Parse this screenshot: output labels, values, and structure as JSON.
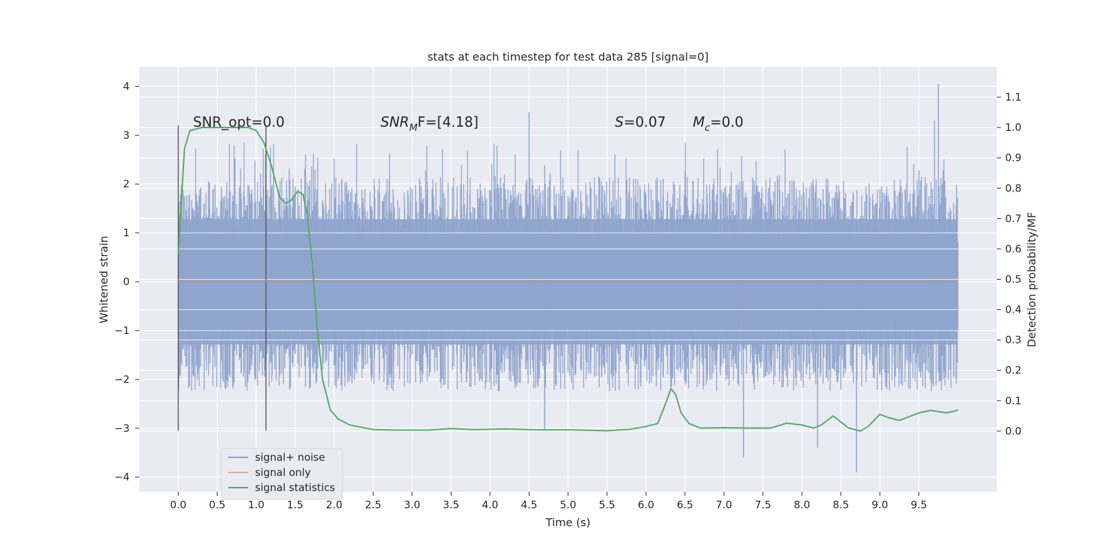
{
  "chart_data": {
    "type": "line",
    "title": "stats at each timestep for test data 285 [signal=0]",
    "xlabel": "Time (s)",
    "ylabel": "Whitened strain",
    "y2label": "Detection probability/MF",
    "xlim": [
      -0.5,
      10.5
    ],
    "ylim": [
      -4.3,
      4.4
    ],
    "y2lim": [
      -0.2,
      1.2
    ],
    "x_ticks": [
      "0.0",
      "0.5",
      "1.0",
      "1.5",
      "2.0",
      "2.5",
      "3.0",
      "3.5",
      "4.0",
      "4.5",
      "5.0",
      "5.5",
      "6.0",
      "6.5",
      "7.0",
      "7.5",
      "8.0",
      "8.5",
      "9.0",
      "9.5"
    ],
    "y_ticks": [
      "4",
      "3",
      "2",
      "1",
      "0",
      "−1",
      "−2",
      "−3",
      "−4"
    ],
    "y2_ticks": [
      "1.1",
      "1.0",
      "0.9",
      "0.8",
      "0.7",
      "0.6",
      "0.5",
      "0.4",
      "0.3",
      "0.2",
      "0.1",
      "0.0"
    ],
    "grid": true,
    "legend_placement": "lower-left",
    "annotations": {
      "snr_opt": "SNR_opt=0.0",
      "snr_mf_main": "SNR",
      "snr_mf_sub": "M",
      "snr_mf_rest": "F=[4.18]",
      "s_main": "S",
      "s_rest": "=0.07",
      "mc_main": "M",
      "mc_sub": "c",
      "mc_rest": "=0.0"
    },
    "vertical_markers": [
      0.0,
      1.125
    ],
    "series": [
      {
        "name": "signal+ noise",
        "axis": "left",
        "color": "#8fa4cc",
        "x_range": [
          0.0,
          10.0
        ],
        "band_typical": [
          -1.35,
          1.35
        ],
        "peak_range": [
          -3.9,
          4.05
        ],
        "notable_peaks": [
          {
            "x": 4.5,
            "y": 3.47
          },
          {
            "x": 9.75,
            "y": 4.05
          },
          {
            "x": 9.7,
            "y": 3.3
          },
          {
            "x": 8.7,
            "y": -3.9
          },
          {
            "x": 7.25,
            "y": -3.6
          },
          {
            "x": 8.2,
            "y": -3.4
          },
          {
            "x": 1.12,
            "y": 2.6
          },
          {
            "x": 4.7,
            "y": -3.05
          }
        ]
      },
      {
        "name": "signal only",
        "axis": "left",
        "color": "#dd8452",
        "points": [
          [
            0.0,
            0.0
          ],
          [
            10.0,
            0.0
          ]
        ]
      },
      {
        "name": "signal statistics",
        "axis": "right",
        "color": "#55a868",
        "points": [
          [
            0.0,
            0.58
          ],
          [
            0.08,
            0.93
          ],
          [
            0.15,
            0.99
          ],
          [
            0.3,
            1.0
          ],
          [
            0.5,
            1.0
          ],
          [
            0.7,
            1.0
          ],
          [
            0.9,
            1.0
          ],
          [
            1.0,
            0.99
          ],
          [
            1.1,
            0.95
          ],
          [
            1.2,
            0.87
          ],
          [
            1.3,
            0.77
          ],
          [
            1.38,
            0.75
          ],
          [
            1.45,
            0.76
          ],
          [
            1.53,
            0.79
          ],
          [
            1.6,
            0.78
          ],
          [
            1.65,
            0.72
          ],
          [
            1.72,
            0.55
          ],
          [
            1.78,
            0.35
          ],
          [
            1.85,
            0.17
          ],
          [
            1.95,
            0.07
          ],
          [
            2.05,
            0.04
          ],
          [
            2.2,
            0.02
          ],
          [
            2.5,
            0.005
          ],
          [
            2.8,
            0.003
          ],
          [
            3.2,
            0.003
          ],
          [
            3.5,
            0.008
          ],
          [
            3.8,
            0.005
          ],
          [
            4.2,
            0.007
          ],
          [
            4.6,
            0.004
          ],
          [
            5.0,
            0.004
          ],
          [
            5.5,
            0.001
          ],
          [
            5.8,
            0.006
          ],
          [
            6.0,
            0.015
          ],
          [
            6.15,
            0.025
          ],
          [
            6.25,
            0.09
          ],
          [
            6.32,
            0.14
          ],
          [
            6.38,
            0.12
          ],
          [
            6.45,
            0.06
          ],
          [
            6.55,
            0.025
          ],
          [
            6.7,
            0.01
          ],
          [
            7.0,
            0.011
          ],
          [
            7.3,
            0.01
          ],
          [
            7.6,
            0.01
          ],
          [
            7.8,
            0.026
          ],
          [
            8.0,
            0.02
          ],
          [
            8.15,
            0.01
          ],
          [
            8.25,
            0.02
          ],
          [
            8.4,
            0.05
          ],
          [
            8.6,
            0.01
          ],
          [
            8.75,
            0.0
          ],
          [
            8.85,
            0.015
          ],
          [
            9.0,
            0.055
          ],
          [
            9.1,
            0.045
          ],
          [
            9.25,
            0.035
          ],
          [
            9.5,
            0.06
          ],
          [
            9.65,
            0.068
          ],
          [
            9.85,
            0.06
          ],
          [
            9.95,
            0.065
          ],
          [
            10.0,
            0.07
          ]
        ]
      }
    ]
  }
}
